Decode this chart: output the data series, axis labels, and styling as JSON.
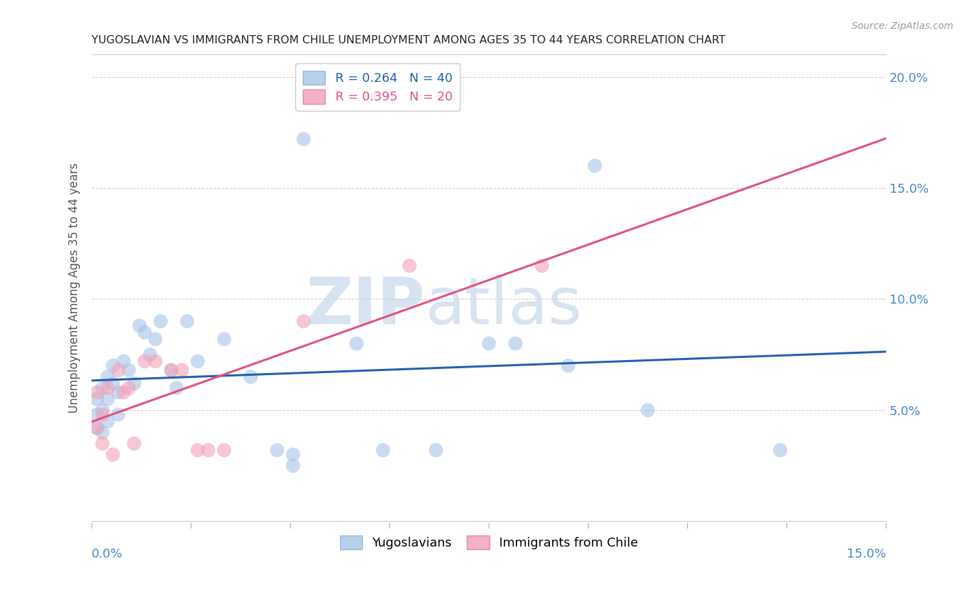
{
  "title": "YUGOSLAVIAN VS IMMIGRANTS FROM CHILE UNEMPLOYMENT AMONG AGES 35 TO 44 YEARS CORRELATION CHART",
  "source": "Source: ZipAtlas.com",
  "ylabel": "Unemployment Among Ages 35 to 44 years",
  "xlim": [
    0.0,
    0.15
  ],
  "ylim": [
    0.0,
    0.21
  ],
  "yticks": [
    0.05,
    0.1,
    0.15,
    0.2
  ],
  "ytick_labels": [
    "5.0%",
    "10.0%",
    "15.0%",
    "20.0%"
  ],
  "blue_scatter_color": "#a8c4e8",
  "pink_scatter_color": "#f4a0b8",
  "blue_line_color": "#2060b0",
  "pink_line_color": "#e05080",
  "tick_color": "#4488cc",
  "watermark_zip": "ZIP",
  "watermark_atlas": "atlas",
  "yugoslavians_x": [
    0.001,
    0.001,
    0.001,
    0.002,
    0.002,
    0.002,
    0.003,
    0.003,
    0.003,
    0.004,
    0.004,
    0.005,
    0.005,
    0.006,
    0.007,
    0.008,
    0.009,
    0.01,
    0.011,
    0.012,
    0.013,
    0.015,
    0.016,
    0.018,
    0.02,
    0.025,
    0.03,
    0.035,
    0.038,
    0.038,
    0.04,
    0.05,
    0.055,
    0.065,
    0.075,
    0.08,
    0.09,
    0.095,
    0.105,
    0.13
  ],
  "yugoslavians_y": [
    0.055,
    0.048,
    0.042,
    0.06,
    0.05,
    0.04,
    0.065,
    0.055,
    0.045,
    0.07,
    0.062,
    0.058,
    0.048,
    0.072,
    0.068,
    0.062,
    0.088,
    0.085,
    0.075,
    0.082,
    0.09,
    0.068,
    0.06,
    0.09,
    0.072,
    0.082,
    0.065,
    0.032,
    0.03,
    0.025,
    0.172,
    0.08,
    0.032,
    0.032,
    0.08,
    0.08,
    0.07,
    0.16,
    0.05,
    0.032
  ],
  "chile_x": [
    0.001,
    0.001,
    0.002,
    0.002,
    0.003,
    0.004,
    0.005,
    0.006,
    0.007,
    0.008,
    0.01,
    0.012,
    0.015,
    0.017,
    0.02,
    0.022,
    0.025,
    0.04,
    0.06,
    0.085
  ],
  "chile_y": [
    0.058,
    0.042,
    0.048,
    0.035,
    0.06,
    0.03,
    0.068,
    0.058,
    0.06,
    0.035,
    0.072,
    0.072,
    0.068,
    0.068,
    0.032,
    0.032,
    0.032,
    0.09,
    0.115,
    0.115
  ]
}
